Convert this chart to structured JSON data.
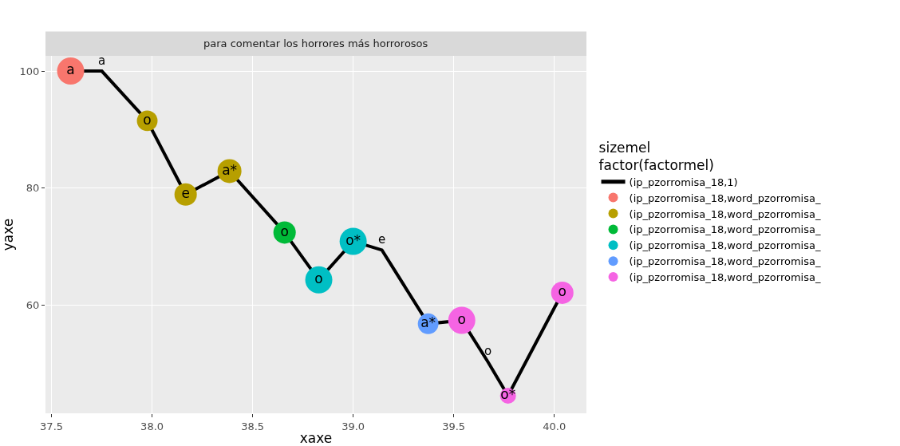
{
  "chart_data": {
    "type": "bubble",
    "title": "para comentar los horrores más horrorosos",
    "xlabel": "xaxe",
    "ylabel": "yaxe",
    "legend_title": "sizemel\nfactor(factormel)",
    "xlim": [
      37.47,
      40.16
    ],
    "xticks": [
      {
        "value": 37.5,
        "label": "37.5"
      },
      {
        "value": 38,
        "label": "38.0"
      },
      {
        "value": 38.5,
        "label": "38.5"
      },
      {
        "value": 39,
        "label": "39.0"
      },
      {
        "value": 39.5,
        "label": "39.5"
      },
      {
        "value": 40,
        "label": "40.0"
      }
    ],
    "ylim": [
      41.5,
      102.6
    ],
    "yticks": [
      60,
      80,
      100
    ],
    "grid": true,
    "legend": "right",
    "marker": "circle",
    "line_style": "solid",
    "series": [
      {
        "type": "line",
        "marker": "none",
        "name": "(ip_pzorromisa_18,1)",
        "color": "#000000",
        "x": [
          37.595,
          37.75,
          37.976,
          38.167,
          38.385,
          38.659,
          38.829,
          39.0,
          39.143,
          39.373,
          39.54,
          39.67,
          39.77,
          40.04
        ],
        "values": [
          100,
          100,
          91.5,
          78.9,
          82.9,
          72.4,
          64.3,
          70.9,
          69.4,
          56.8,
          57.4,
          50.3,
          44.5,
          62.1
        ]
      },
      {
        "name": "(ip_pzorromisa_18,word_pzorromisa_",
        "color": "#f8766d",
        "x": [
          37.595
        ],
        "values": [
          100
        ],
        "sizes": [
          1
        ],
        "value_labels": [
          "a"
        ]
      },
      {
        "name": "(ip_pzorromisa_18,word_pzorromisa_",
        "color": "#b79f00",
        "x": [
          37.976,
          38.167,
          38.385
        ],
        "values": [
          91.5,
          78.9,
          82.9
        ],
        "sizes": [
          0.58,
          0.68,
          0.78
        ],
        "value_labels": [
          "o",
          "e",
          "a*"
        ]
      },
      {
        "name": "(ip_pzorromisa_18,word_pzorromisa_",
        "color": "#00ba38",
        "x": [
          38.659
        ],
        "values": [
          72.4
        ],
        "sizes": [
          0.68
        ],
        "value_labels": [
          "o"
        ]
      },
      {
        "name": "(ip_pzorromisa_18,word_pzorromisa_",
        "color": "#00bfc4",
        "x": [
          38.829,
          39.0
        ],
        "values": [
          64.3,
          70.9
        ],
        "sizes": [
          1,
          1
        ],
        "value_labels": [
          "o",
          "o*"
        ]
      },
      {
        "name": "(ip_pzorromisa_18,word_pzorromisa_",
        "color": "#619cff",
        "x": [
          39.373
        ],
        "values": [
          56.8
        ],
        "sizes": [
          0.58
        ],
        "value_labels": [
          "a*"
        ]
      },
      {
        "name": "(ip_pzorromisa_18,word_pzorromisa_",
        "color": "#f564e3",
        "x": [
          39.54,
          39.77,
          40.04
        ],
        "values": [
          57.4,
          44.5,
          62.1
        ],
        "sizes": [
          1,
          0.35,
          0.68
        ],
        "value_labels": [
          "o",
          "o*",
          "o"
        ]
      }
    ],
    "annotations": [
      {
        "text": "a",
        "x": 37.75,
        "y": 100
      },
      {
        "text": "e",
        "x": 39.143,
        "y": 69.4
      },
      {
        "text": "o",
        "x": 39.67,
        "y": 50.3
      }
    ]
  }
}
